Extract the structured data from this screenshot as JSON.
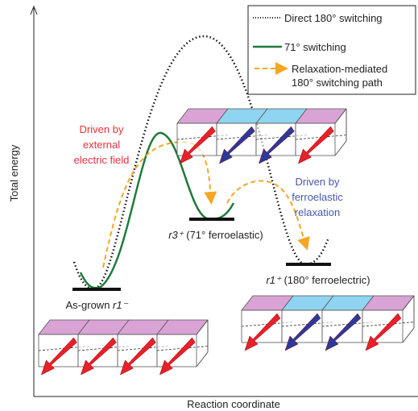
{
  "axes": {
    "y_label": "Total energy",
    "x_label": "Reaction coordinate"
  },
  "legend": [
    {
      "lines": [
        "Direct 180° switching"
      ]
    },
    {
      "lines": [
        "71° switching"
      ]
    },
    {
      "lines": [
        "Relaxation-mediated",
        "180° switching path"
      ]
    }
  ],
  "annotations": {
    "field": [
      "Driven by",
      "external",
      "electric field"
    ],
    "relaxation": [
      "Driven by",
      "ferroelastic",
      "relaxation"
    ]
  },
  "states": [
    {
      "prefix": "As-grown ",
      "symbol": "r1⁻",
      "suffix": ""
    },
    {
      "prefix": "",
      "symbol": "r3⁺",
      "suffix": " (71° ferroelastic)"
    },
    {
      "prefix": "",
      "symbol": "r1⁺",
      "suffix": " (180° ferroelectric)"
    }
  ]
}
